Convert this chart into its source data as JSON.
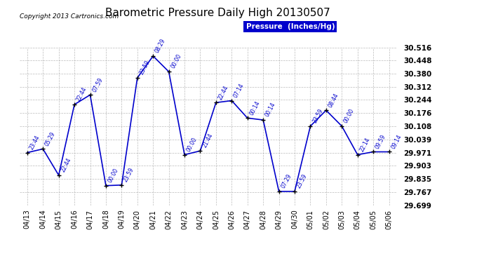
{
  "title": "Barometric Pressure Daily High 20130507",
  "copyright": "Copyright 2013 Cartronics.com",
  "legend_label": "Pressure  (Inches/Hg)",
  "ylim": [
    29.699,
    30.516
  ],
  "yticks": [
    29.699,
    29.767,
    29.835,
    29.903,
    29.971,
    30.039,
    30.108,
    30.176,
    30.244,
    30.312,
    30.38,
    30.448,
    30.516
  ],
  "line_color": "#0000cc",
  "marker_color": "#000000",
  "bg_color": "#ffffff",
  "grid_color": "#aaaaaa",
  "title_fontsize": 11,
  "copyright_fontsize": 6.5,
  "label_fontsize": 5.5,
  "ytick_fontsize": 7.5,
  "xtick_fontsize": 7,
  "points": [
    {
      "date": "04/13",
      "value": 29.971,
      "label": "23:44"
    },
    {
      "date": "04/14",
      "value": 29.99,
      "label": "05:29"
    },
    {
      "date": "04/15",
      "value": 29.854,
      "label": "22:44"
    },
    {
      "date": "04/16",
      "value": 30.22,
      "label": "22:44"
    },
    {
      "date": "04/17",
      "value": 30.27,
      "label": "07:59"
    },
    {
      "date": "04/18",
      "value": 29.8,
      "label": "00:00"
    },
    {
      "date": "04/19",
      "value": 29.803,
      "label": "23:59"
    },
    {
      "date": "04/20",
      "value": 30.358,
      "label": "23:59"
    },
    {
      "date": "04/21",
      "value": 30.471,
      "label": "08:29"
    },
    {
      "date": "04/22",
      "value": 30.39,
      "label": "00:00"
    },
    {
      "date": "04/23",
      "value": 29.96,
      "label": "00:00"
    },
    {
      "date": "04/24",
      "value": 29.98,
      "label": "21:44"
    },
    {
      "date": "04/25",
      "value": 30.23,
      "label": "22:44"
    },
    {
      "date": "04/26",
      "value": 30.24,
      "label": "07:14"
    },
    {
      "date": "04/27",
      "value": 30.15,
      "label": "00:14"
    },
    {
      "date": "04/28",
      "value": 30.14,
      "label": "00:14"
    },
    {
      "date": "04/29",
      "value": 29.77,
      "label": "07:29"
    },
    {
      "date": "04/30",
      "value": 29.77,
      "label": "23:59"
    },
    {
      "date": "05/01",
      "value": 30.108,
      "label": "23:59"
    },
    {
      "date": "05/02",
      "value": 30.19,
      "label": "08:44"
    },
    {
      "date": "05/03",
      "value": 30.108,
      "label": "00:00"
    },
    {
      "date": "05/04",
      "value": 29.96,
      "label": "22:14"
    },
    {
      "date": "05/05",
      "value": 29.975,
      "label": "09:59"
    },
    {
      "date": "05/06",
      "value": 29.975,
      "label": "09:14"
    }
  ]
}
